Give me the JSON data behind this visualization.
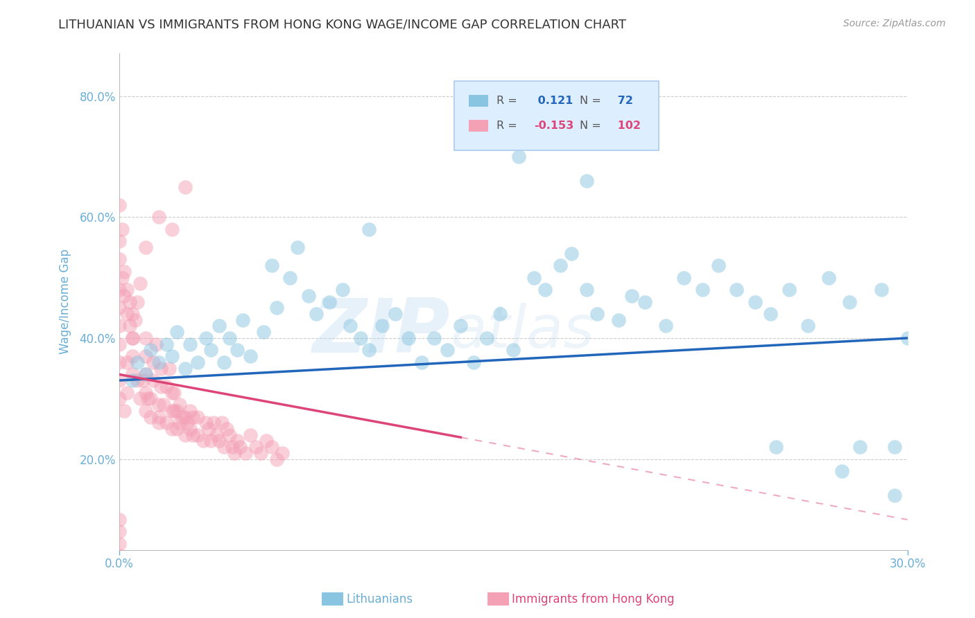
{
  "title": "LITHUANIAN VS IMMIGRANTS FROM HONG KONG WAGE/INCOME GAP CORRELATION CHART",
  "source_text": "Source: ZipAtlas.com",
  "ylabel": "Wage/Income Gap",
  "watermark_zip": "ZIP",
  "watermark_atlas": "atlas",
  "xlim": [
    0.0,
    0.3
  ],
  "ylim": [
    0.05,
    0.87
  ],
  "ytick_labels": [
    "20.0%",
    "40.0%",
    "60.0%",
    "80.0%"
  ],
  "ytick_values": [
    0.2,
    0.4,
    0.6,
    0.8
  ],
  "blue_R": 0.121,
  "blue_N": 72,
  "pink_R": -0.153,
  "pink_N": 102,
  "blue_color": "#89c4e1",
  "pink_color": "#f4a0b5",
  "blue_line_color": "#2266bb",
  "pink_line_color": "#dd4477",
  "title_color": "#333333",
  "axis_label_color": "#6aaed6",
  "tick_color": "#6aaed6",
  "grid_color": "#cccccc",
  "background_color": "#ffffff",
  "legend_box_color": "#ddeeff",
  "blue_scatter_x": [
    0.005,
    0.007,
    0.01,
    0.012,
    0.015,
    0.018,
    0.02,
    0.022,
    0.025,
    0.027,
    0.03,
    0.033,
    0.035,
    0.038,
    0.04,
    0.042,
    0.045,
    0.047,
    0.05,
    0.055,
    0.058,
    0.06,
    0.065,
    0.068,
    0.072,
    0.075,
    0.08,
    0.085,
    0.088,
    0.092,
    0.095,
    0.1,
    0.105,
    0.11,
    0.115,
    0.12,
    0.125,
    0.13,
    0.135,
    0.14,
    0.145,
    0.15,
    0.158,
    0.162,
    0.168,
    0.172,
    0.178,
    0.182,
    0.19,
    0.195,
    0.2,
    0.208,
    0.215,
    0.222,
    0.228,
    0.235,
    0.242,
    0.248,
    0.255,
    0.262,
    0.27,
    0.278,
    0.282,
    0.29,
    0.295,
    0.3,
    0.152,
    0.178,
    0.095,
    0.25,
    0.275,
    0.295
  ],
  "blue_scatter_y": [
    0.33,
    0.36,
    0.34,
    0.38,
    0.36,
    0.39,
    0.37,
    0.41,
    0.35,
    0.39,
    0.36,
    0.4,
    0.38,
    0.42,
    0.36,
    0.4,
    0.38,
    0.43,
    0.37,
    0.41,
    0.52,
    0.45,
    0.5,
    0.55,
    0.47,
    0.44,
    0.46,
    0.48,
    0.42,
    0.4,
    0.38,
    0.42,
    0.44,
    0.4,
    0.36,
    0.4,
    0.38,
    0.42,
    0.36,
    0.4,
    0.44,
    0.38,
    0.5,
    0.48,
    0.52,
    0.54,
    0.48,
    0.44,
    0.43,
    0.47,
    0.46,
    0.42,
    0.5,
    0.48,
    0.52,
    0.48,
    0.46,
    0.44,
    0.48,
    0.42,
    0.5,
    0.46,
    0.22,
    0.48,
    0.22,
    0.4,
    0.7,
    0.66,
    0.58,
    0.22,
    0.18,
    0.14
  ],
  "pink_scatter_x": [
    0.0,
    0.0,
    0.0,
    0.0,
    0.0,
    0.0,
    0.0,
    0.0,
    0.002,
    0.003,
    0.005,
    0.005,
    0.005,
    0.006,
    0.007,
    0.008,
    0.008,
    0.009,
    0.01,
    0.01,
    0.01,
    0.01,
    0.01,
    0.012,
    0.012,
    0.013,
    0.013,
    0.014,
    0.015,
    0.015,
    0.016,
    0.016,
    0.017,
    0.018,
    0.018,
    0.019,
    0.02,
    0.02,
    0.02,
    0.021,
    0.021,
    0.022,
    0.022,
    0.023,
    0.023,
    0.024,
    0.025,
    0.025,
    0.026,
    0.027,
    0.027,
    0.028,
    0.028,
    0.03,
    0.03,
    0.032,
    0.033,
    0.034,
    0.035,
    0.036,
    0.037,
    0.038,
    0.039,
    0.04,
    0.041,
    0.042,
    0.043,
    0.044,
    0.045,
    0.046,
    0.048,
    0.05,
    0.052,
    0.054,
    0.056,
    0.058,
    0.06,
    0.062,
    0.0,
    0.0,
    0.001,
    0.001,
    0.002,
    0.002,
    0.003,
    0.003,
    0.004,
    0.004,
    0.005,
    0.005,
    0.01,
    0.015,
    0.02,
    0.025,
    0.003,
    0.007,
    0.011,
    0.015,
    0.0,
    0.0,
    0.0,
    0.0
  ],
  "pink_scatter_y": [
    0.3,
    0.33,
    0.36,
    0.39,
    0.42,
    0.45,
    0.48,
    0.62,
    0.28,
    0.31,
    0.34,
    0.37,
    0.4,
    0.43,
    0.46,
    0.49,
    0.3,
    0.33,
    0.28,
    0.31,
    0.34,
    0.37,
    0.4,
    0.27,
    0.3,
    0.33,
    0.36,
    0.39,
    0.26,
    0.29,
    0.32,
    0.35,
    0.29,
    0.26,
    0.32,
    0.35,
    0.25,
    0.28,
    0.31,
    0.28,
    0.31,
    0.25,
    0.28,
    0.26,
    0.29,
    0.27,
    0.24,
    0.27,
    0.26,
    0.25,
    0.28,
    0.24,
    0.27,
    0.24,
    0.27,
    0.23,
    0.26,
    0.25,
    0.23,
    0.26,
    0.24,
    0.23,
    0.26,
    0.22,
    0.25,
    0.24,
    0.22,
    0.21,
    0.23,
    0.22,
    0.21,
    0.24,
    0.22,
    0.21,
    0.23,
    0.22,
    0.2,
    0.21,
    0.53,
    0.56,
    0.5,
    0.58,
    0.47,
    0.51,
    0.44,
    0.48,
    0.42,
    0.46,
    0.4,
    0.44,
    0.55,
    0.6,
    0.58,
    0.65,
    0.36,
    0.33,
    0.3,
    0.27,
    0.1,
    0.08,
    0.06,
    0.04
  ]
}
